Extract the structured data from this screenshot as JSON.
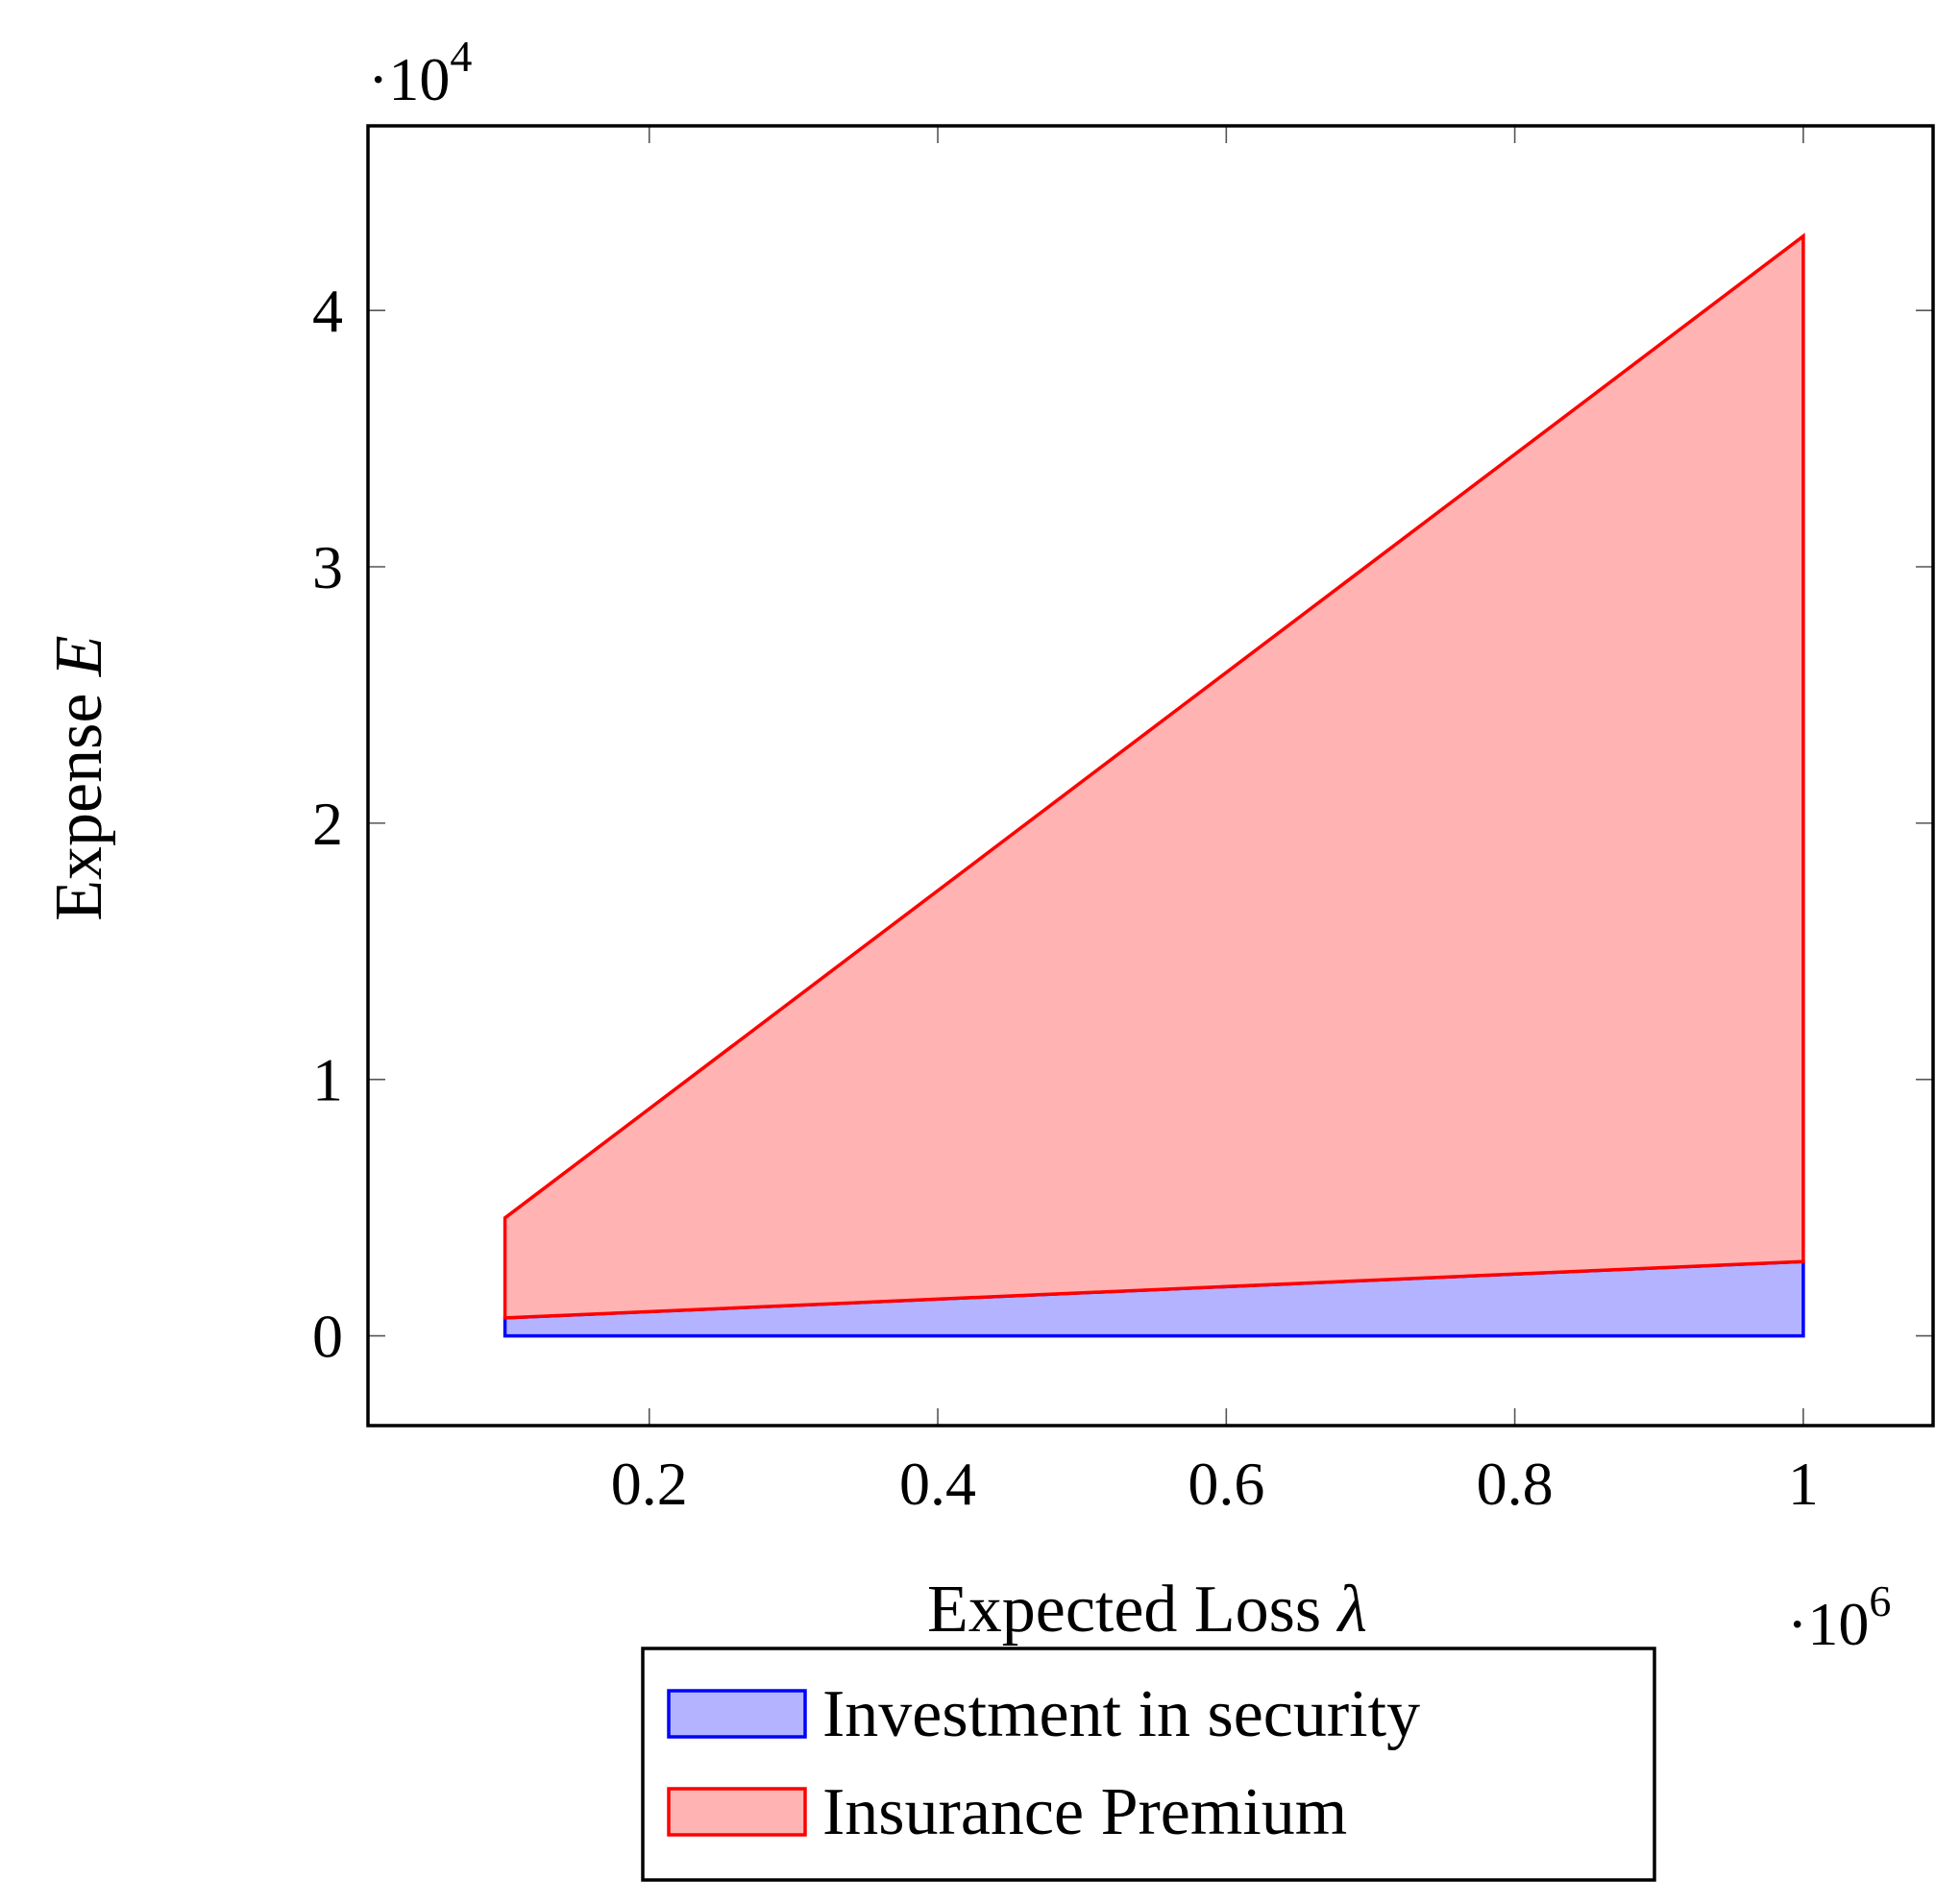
{
  "chart_data": {
    "type": "area",
    "title": "",
    "xlabel": {
      "text": "Expected Loss ",
      "symbol": "λ"
    },
    "ylabel": {
      "text": "Expense ",
      "symbol": "E"
    },
    "x_multiplier": {
      "base": "·10",
      "exponent": "6"
    },
    "y_multiplier": {
      "base": "·10",
      "exponent": "4"
    },
    "xlim": [
      0.005,
      1.09
    ],
    "ylim": [
      -0.35,
      4.72
    ],
    "xticks": [
      0.2,
      0.4,
      0.6,
      0.8,
      1
    ],
    "xtick_labels": [
      "0.2",
      "0.4",
      "0.6",
      "0.8",
      "1"
    ],
    "yticks": [
      0,
      1,
      2,
      3,
      4
    ],
    "ytick_labels": [
      "0",
      "1",
      "2",
      "3",
      "4"
    ],
    "grid": false,
    "legend_position": "below",
    "series": [
      {
        "name": "Investment in security",
        "x": [
          0.1,
          1.0
        ],
        "lower": [
          0,
          0
        ],
        "upper": [
          0.07,
          0.29
        ],
        "stroke": "#0000ff",
        "fill": "#b3b3ff"
      },
      {
        "name": "Insurance Premium",
        "x": [
          0.1,
          1.0
        ],
        "lower": [
          0.07,
          0.29
        ],
        "upper": [
          0.46,
          4.29
        ],
        "stroke": "#ff0000",
        "fill": "#ffb3b3"
      }
    ]
  }
}
